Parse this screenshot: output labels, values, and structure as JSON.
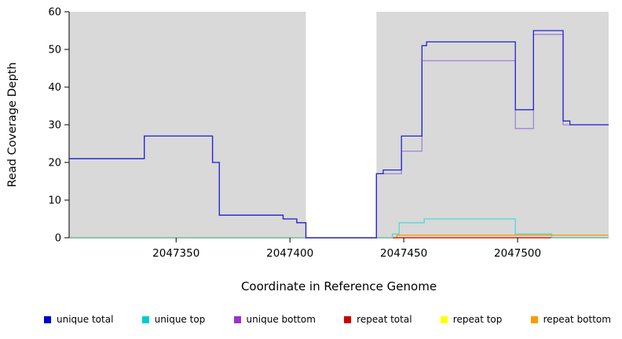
{
  "chart_data": {
    "type": "line",
    "title": "",
    "xlabel": "Coordinate in Reference Genome",
    "ylabel": "Read Coverage Depth",
    "xlim": [
      2047303,
      2047540
    ],
    "ylim": [
      0,
      60
    ],
    "x_ticks": [
      2047350,
      2047400,
      2047450,
      2047500
    ],
    "y_ticks": [
      0,
      10,
      20,
      30,
      40,
      50,
      60
    ],
    "panel_bg": "#d9d9d9",
    "gap_region": {
      "start": 2047407,
      "end": 2047438
    },
    "grid": false,
    "legend_position": "bottom",
    "series": [
      {
        "name": "repeat bottom",
        "color": "#ff9900",
        "steps": [
          [
            2047303,
            0
          ],
          [
            2047447,
            0.7
          ]
        ]
      },
      {
        "name": "repeat top",
        "color": "#ffff00",
        "steps": [
          [
            2047303,
            0
          ]
        ]
      },
      {
        "name": "repeat total",
        "color": "#cc0000",
        "steps": [
          [
            2047303,
            0
          ]
        ]
      },
      {
        "name": "unique bottom",
        "color": "#a184d6",
        "steps": [
          [
            2047303,
            21
          ],
          [
            2047336,
            27
          ],
          [
            2047366,
            20
          ],
          [
            2047369,
            6
          ],
          [
            2047397,
            5
          ],
          [
            2047403,
            4
          ],
          [
            2047407,
            0
          ],
          [
            2047438,
            17
          ],
          [
            2047449,
            23
          ],
          [
            2047458,
            47
          ],
          [
            2047499,
            29
          ],
          [
            2047507,
            54
          ],
          [
            2047520,
            30
          ]
        ]
      },
      {
        "name": "unique top",
        "color": "#55d6d6",
        "steps": [
          [
            2047303,
            0
          ],
          [
            2047445,
            1
          ],
          [
            2047448,
            4
          ],
          [
            2047459,
            5
          ],
          [
            2047499,
            1
          ],
          [
            2047515,
            0
          ]
        ]
      },
      {
        "name": "unique total",
        "color": "#2424d0",
        "steps": [
          [
            2047303,
            21
          ],
          [
            2047336,
            27
          ],
          [
            2047366,
            20
          ],
          [
            2047369,
            6
          ],
          [
            2047397,
            5
          ],
          [
            2047403,
            4
          ],
          [
            2047407,
            0
          ],
          [
            2047438,
            17
          ],
          [
            2047441,
            18
          ],
          [
            2047449,
            27
          ],
          [
            2047458,
            51
          ],
          [
            2047460,
            52
          ],
          [
            2047499,
            34
          ],
          [
            2047507,
            55
          ],
          [
            2047520,
            31
          ],
          [
            2047523,
            30
          ]
        ]
      }
    ],
    "legend": [
      {
        "label": "unique total",
        "color": "#0000cc"
      },
      {
        "label": "unique top",
        "color": "#00cccc"
      },
      {
        "label": "unique bottom",
        "color": "#9933cc"
      },
      {
        "label": "repeat total",
        "color": "#cc0000"
      },
      {
        "label": "repeat top",
        "color": "#ffff00"
      },
      {
        "label": "repeat bottom",
        "color": "#ff9900"
      }
    ]
  }
}
